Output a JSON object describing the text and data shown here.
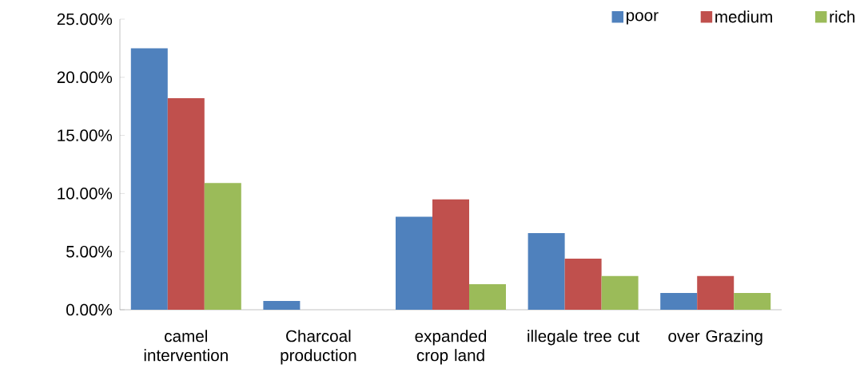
{
  "chart_data": {
    "type": "bar",
    "categories": [
      "camel intervention",
      "Charcoal production",
      "expanded crop land",
      "illegale tree cut",
      "over Grazing"
    ],
    "series": [
      {
        "name": "poor",
        "color": "#4f81bd",
        "values": [
          22.5,
          0.75,
          8.0,
          6.6,
          1.45
        ]
      },
      {
        "name": "medium",
        "color": "#c0504d",
        "values": [
          18.2,
          0,
          9.5,
          4.4,
          2.9
        ]
      },
      {
        "name": "rich",
        "color": "#9bbb59",
        "values": [
          10.9,
          0,
          2.2,
          2.9,
          1.45
        ]
      }
    ],
    "ylim": [
      0,
      25
    ],
    "yticks": [
      {
        "value": 0,
        "label": "0.00%"
      },
      {
        "value": 5,
        "label": "5.00%"
      },
      {
        "value": 10,
        "label": "10.00%"
      },
      {
        "value": 15,
        "label": "15.00%"
      },
      {
        "value": 20,
        "label": "20.00%"
      },
      {
        "value": 25,
        "label": "25.00%"
      }
    ],
    "grid": false,
    "legend": "top right"
  }
}
